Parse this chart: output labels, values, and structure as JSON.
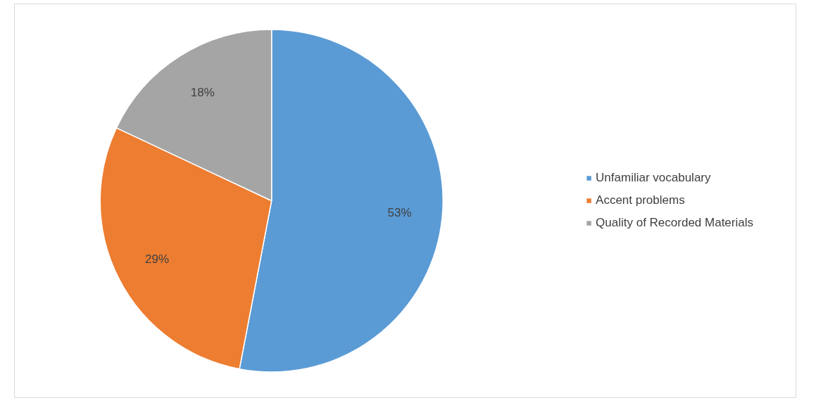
{
  "chart_data": {
    "type": "pie",
    "categories": [
      "Unfamiliar vocabulary",
      "Accent problems",
      "Quality of Recorded Materials"
    ],
    "values": [
      53,
      29,
      18
    ],
    "colors": [
      "#5b9bd5",
      "#ed7d31",
      "#a5a5a5"
    ],
    "value_labels": [
      "53%",
      "29%",
      "18%"
    ],
    "legend": "right"
  }
}
